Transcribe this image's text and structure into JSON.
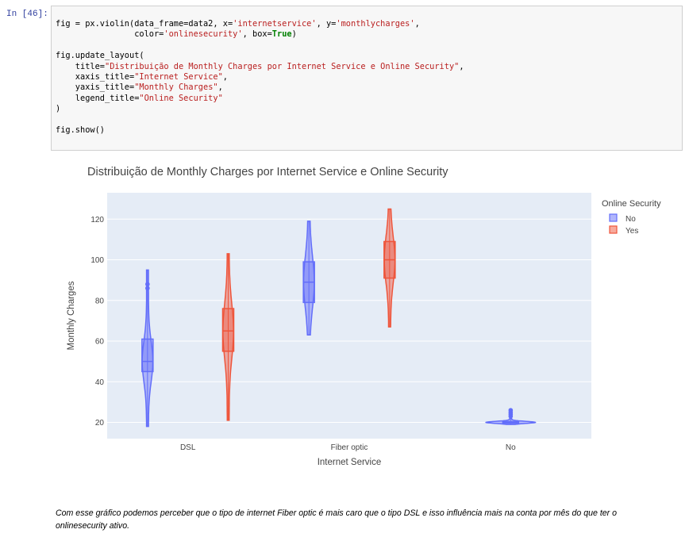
{
  "prompt": "In [46]:",
  "code": {
    "l1_a": "fig = px.violin(data_frame=data2, x=",
    "l1_s1": "'internetservice'",
    "l1_b": ", y=",
    "l1_s2": "'monthlycharges'",
    "l1_c": ",",
    "l2_a": "                color=",
    "l2_s1": "'onlinesecurity'",
    "l2_b": ", box=",
    "l2_kw": "True",
    "l2_c": ")",
    "l4": "fig.update_layout(",
    "l5_a": "    title=",
    "l5_s": "\"Distribuição de Monthly Charges por Internet Service e Online Security\"",
    "l5_b": ",",
    "l6_a": "    xaxis_title=",
    "l6_s": "\"Internet Service\"",
    "l6_b": ",",
    "l7_a": "    yaxis_title=",
    "l7_s": "\"Monthly Charges\"",
    "l7_b": ",",
    "l8_a": "    legend_title=",
    "l8_s": "\"Online Security\"",
    "l9": ")",
    "l11": "fig.show()"
  },
  "chart_data": {
    "type": "violin",
    "title": "Distribuição de Monthly Charges por Internet Service e Online Security",
    "xlabel": "Internet Service",
    "ylabel": "Monthly Charges",
    "categories": [
      "DSL",
      "Fiber optic",
      "No"
    ],
    "yticks": [
      20,
      40,
      60,
      80,
      100,
      120
    ],
    "ylim": [
      12,
      133
    ],
    "legend": {
      "title": "Online Security",
      "placement": "right"
    },
    "grid": true,
    "series": [
      {
        "name": "No",
        "color": "#636efa",
        "groups": [
          {
            "category": "DSL",
            "min": 18,
            "q1": 45,
            "median": 50,
            "q3": 61,
            "max": 95,
            "outliers": [
              86,
              88
            ]
          },
          {
            "category": "Fiber optic",
            "min": 63,
            "q1": 79,
            "median": 89,
            "q3": 99,
            "max": 119,
            "outliers": []
          },
          {
            "category": "No",
            "min": 19,
            "q1": 19.6,
            "median": 20,
            "q3": 20.4,
            "max": 22,
            "outliers": [
              23,
              24,
              25,
              26
            ]
          }
        ]
      },
      {
        "name": "Yes",
        "color": "#ef553b",
        "groups": [
          {
            "category": "DSL",
            "min": 21,
            "q1": 55,
            "median": 65,
            "q3": 76,
            "max": 103,
            "outliers": []
          },
          {
            "category": "Fiber optic",
            "min": 67,
            "q1": 91,
            "median": 100,
            "q3": 109,
            "max": 125,
            "outliers": []
          }
        ]
      }
    ]
  },
  "note": "Com esse gráfico podemos perceber que o tipo de internet Fiber optic é mais caro que o tipo DSL e isso influência mais na conta por mês do que ter o onlinesecurity ativo."
}
